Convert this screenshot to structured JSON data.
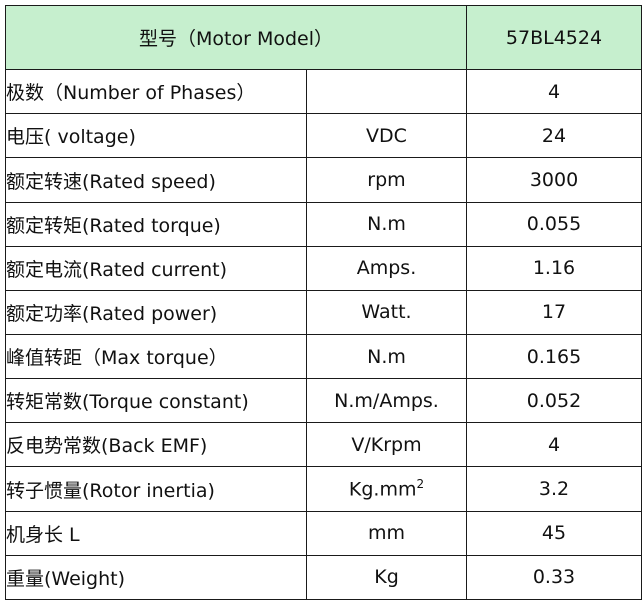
{
  "header": {
    "model_label": "型号（Motor Model）",
    "model_value": "57BL4524"
  },
  "rows": [
    {
      "param": "极数（Number of Phases）",
      "unit": "",
      "value": "4"
    },
    {
      "param": "电压( voltage)",
      "unit": "VDC",
      "value": "24"
    },
    {
      "param": "额定转速(Rated speed)",
      "unit": "rpm",
      "value": "3000"
    },
    {
      "param": "额定转矩(Rated torque)",
      "unit": "N.m",
      "value": "0.055"
    },
    {
      "param": "额定电流(Rated current)",
      "unit": "Amps.",
      "value": "1.16"
    },
    {
      "param": "额定功率(Rated power)",
      "unit": "Watt.",
      "value": "17"
    },
    {
      "param": "峰值转距（Max torque）",
      "unit": "N.m",
      "value": "0.165"
    },
    {
      "param": "转矩常数(Torque constant)",
      "unit": "N.m/Amps.",
      "value": "0.052"
    },
    {
      "param": "反电势常数(Back EMF)",
      "unit": "V/Krpm",
      "value": "4"
    },
    {
      "param": "转子惯量(Rotor inertia)",
      "unit": "Kg.mm",
      "unit_sup": "2",
      "value": "3.2"
    },
    {
      "param": "机身长 L",
      "unit": "mm",
      "value": "45"
    },
    {
      "param": "重量(Weight)",
      "unit": "Kg",
      "value": "0.33"
    }
  ],
  "colors": {
    "header_bg": "#c6efce",
    "border": "#1a1a1a"
  }
}
